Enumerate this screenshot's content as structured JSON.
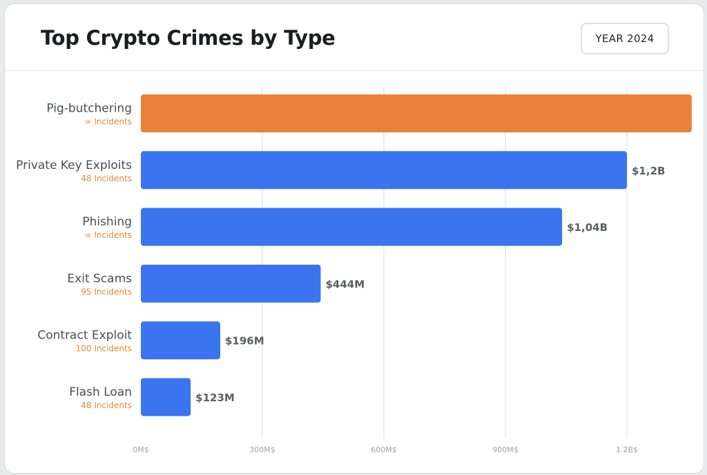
{
  "header": {
    "title": "Top Crypto Crimes by Type",
    "year_button": "YEAR 2024"
  },
  "colors": {
    "highlight": "#ec7f3a",
    "bar": "#3b74ef",
    "incidents": "#e08a3a",
    "grid": "#e6e7ea"
  },
  "chart_data": {
    "type": "bar",
    "orientation": "horizontal",
    "title": "Top Crypto Crimes by Type",
    "categories": [
      "Pig-butchering",
      "Private Key Exploits",
      "Phishing",
      "Exit Scams",
      "Contract Exploit",
      "Flash Loan"
    ],
    "incidents": [
      "∞ Incidents",
      "48 Incidents",
      "∞ Incidents",
      "95 Incidents",
      "100 Incidents",
      "48 Incidents"
    ],
    "values_musd": [
      1360,
      1200,
      1040,
      444,
      196,
      123
    ],
    "value_labels": [
      "",
      "$1,2B",
      "$1,04B",
      "$444M",
      "$196M",
      "$123M"
    ],
    "highlight_index": 0,
    "x_ticks": [
      0,
      300,
      600,
      900,
      1200
    ],
    "x_tick_labels": [
      "0M$",
      "300M$",
      "600M$",
      "900M$",
      "1.2B$"
    ],
    "xlim": [
      0,
      1200
    ],
    "grid": true,
    "legend": "none"
  }
}
